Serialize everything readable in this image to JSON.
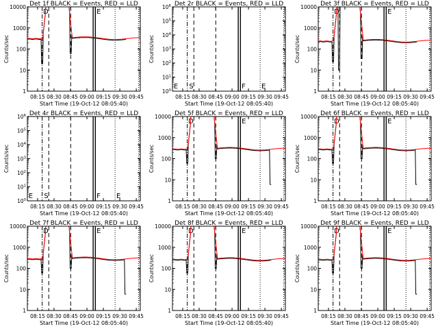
{
  "colors": {
    "events": "#000000",
    "lld": "#ff0000",
    "background": "#ffffff"
  },
  "common": {
    "xlabel": "Start Time (19-Oct-12 08:05:40)",
    "ylabel": "Counts/sec",
    "x_ticks": [
      "08:15",
      "08:30",
      "08:45",
      "09:00",
      "09:15",
      "09:30",
      "09:45"
    ]
  },
  "panels": [
    {
      "title": "Det 1f  BLACK = Events, RED = LLD",
      "ylim": [
        1,
        10000
      ],
      "scale": "log",
      "y_tick_labels": [
        "1",
        "10",
        "100",
        "1000",
        "10000"
      ],
      "markers": [
        "D",
        "E"
      ],
      "baseline": 330,
      "peak": 10000,
      "hole": [
        20,
        60
      ],
      "secondary_dip": null,
      "end_drop": false
    },
    {
      "title": "Det 2r  BLACK = Events, RED = LLD",
      "ylim": [
        1,
        1000000
      ],
      "scale": "log",
      "y_tick_labels": [
        "10^0",
        "10^1",
        "10^2",
        "10^3",
        "10^4",
        "10^5",
        "10^6"
      ],
      "markers": [
        "E",
        "S",
        "F",
        "E"
      ],
      "baseline": null,
      "peak": null,
      "hole": null,
      "secondary_dip": null,
      "end_drop": false
    },
    {
      "title": "Det 3f  BLACK = Events, RED = LLD",
      "ylim": [
        1,
        10000
      ],
      "scale": "log",
      "y_tick_labels": [
        "1",
        "10",
        "100",
        "1000",
        "10000"
      ],
      "markers": [
        "D",
        "E"
      ],
      "baseline": 250,
      "peak": 10000,
      "hole": [
        25,
        35
      ],
      "secondary_dip": [
        10,
        100
      ],
      "end_drop": false
    },
    {
      "title": "Det 4r  BLACK = Events, RED = LLD",
      "ylim": [
        1,
        1000000
      ],
      "scale": "log",
      "y_tick_labels": [
        "10^0",
        "10^1",
        "10^2",
        "10^3",
        "10^4",
        "10^5",
        "10^6"
      ],
      "markers": [
        "E",
        "S",
        "F",
        "E"
      ],
      "baseline": null,
      "peak": null,
      "hole": null,
      "secondary_dip": null,
      "end_drop": false
    },
    {
      "title": "Det 5f  BLACK = Events, RED = LLD",
      "ylim": [
        1,
        10000
      ],
      "scale": "log",
      "y_tick_labels": [
        "1",
        "10",
        "100",
        "1000",
        "10000"
      ],
      "markers": [
        "D",
        "E"
      ],
      "baseline": 300,
      "peak": 10000,
      "hole": [
        60,
        100
      ],
      "secondary_dip": null,
      "end_drop": true
    },
    {
      "title": "Det 6f  BLACK = Events, RED = LLD",
      "ylim": [
        1,
        10000
      ],
      "scale": "log",
      "y_tick_labels": [
        "1",
        "10",
        "100",
        "1000",
        "10000"
      ],
      "markers": [
        "D",
        "E"
      ],
      "baseline": 300,
      "peak": 10000,
      "hole": [
        60,
        100
      ],
      "secondary_dip": null,
      "end_drop": true
    },
    {
      "title": "Det 7f  BLACK = Events, RED = LLD",
      "ylim": [
        1,
        10000
      ],
      "scale": "log",
      "y_tick_labels": [
        "1",
        "10",
        "100",
        "1000",
        "10000"
      ],
      "markers": [
        "D",
        "E"
      ],
      "baseline": 300,
      "peak": 10000,
      "hole": [
        60,
        100
      ],
      "secondary_dip": null,
      "end_drop": true
    },
    {
      "title": "Det 8f  BLACK = Events, RED = LLD",
      "ylim": [
        1,
        10000
      ],
      "scale": "log",
      "y_tick_labels": [
        "1",
        "10",
        "100",
        "1000",
        "10000"
      ],
      "markers": [
        "D",
        "E"
      ],
      "baseline": 280,
      "peak": 10000,
      "hole": [
        60,
        100
      ],
      "secondary_dip": null,
      "end_drop": false
    },
    {
      "title": "Det 9f  BLACK = Events, RED = LLD",
      "ylim": [
        1,
        10000
      ],
      "scale": "log",
      "y_tick_labels": [
        "1",
        "10",
        "100",
        "1000",
        "10000"
      ],
      "markers": [
        "D",
        "E"
      ],
      "baseline": 280,
      "peak": 10000,
      "hole": [
        60,
        100
      ],
      "secondary_dip": null,
      "end_drop": true
    }
  ]
}
